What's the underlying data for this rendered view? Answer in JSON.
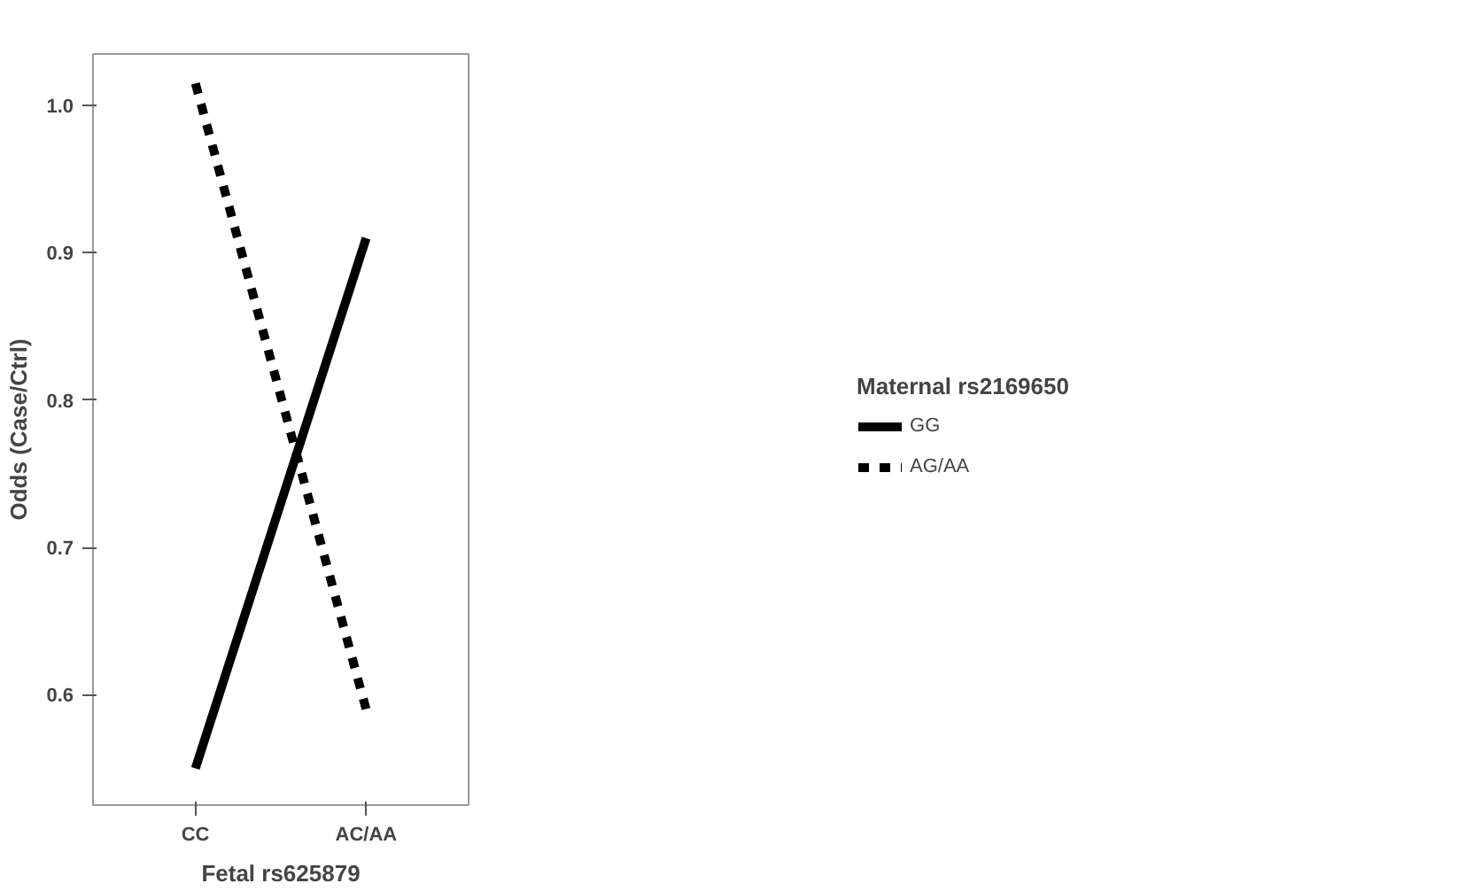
{
  "chart_data": {
    "type": "line",
    "xlabel": "Fetal rs625879",
    "ylabel": "Odds (Case/Ctrl)",
    "legend_title": "Maternal rs2169650",
    "categories": [
      "CC",
      "AC/AA"
    ],
    "series": [
      {
        "name": "GG",
        "color": "#000000",
        "line_style": "solid",
        "values": [
          0.55,
          0.91
        ]
      },
      {
        "name": "AG/AA",
        "color": "#000000",
        "line_style": "dashed",
        "values": [
          1.015,
          0.59
        ]
      }
    ],
    "ylim": [
      0.525,
      1.035
    ],
    "yticks": [
      0.6,
      0.7,
      0.8,
      0.9,
      {
        "value": 1.0,
        "label": "1.0"
      }
    ],
    "grid": false,
    "legend": "right",
    "marker": "none"
  }
}
